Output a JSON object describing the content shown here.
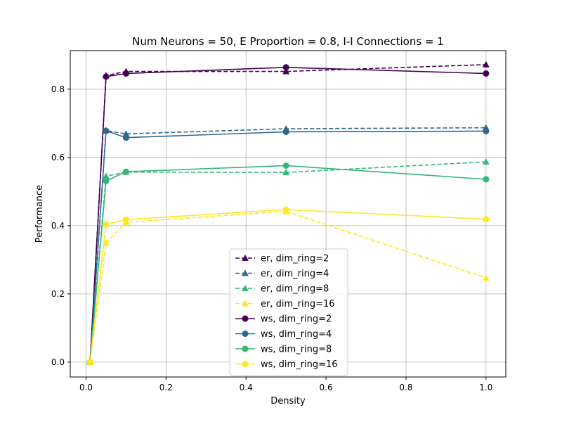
{
  "chart_data": {
    "type": "line",
    "title": "Num Neurons = 50, E Proportion = 0.8, I-I Connections = 1",
    "xlabel": "Density",
    "ylabel": "Performance",
    "xlim": [
      -0.0395,
      1.0495
    ],
    "ylim": [
      -0.0435,
      0.913
    ],
    "xticks": [
      0.0,
      0.2,
      0.4,
      0.6,
      0.8,
      1.0
    ],
    "xtick_labels": [
      "0.0",
      "0.2",
      "0.4",
      "0.6",
      "0.8",
      "1.0"
    ],
    "yticks": [
      0.0,
      0.2,
      0.4,
      0.6,
      0.8
    ],
    "ytick_labels": [
      "0.0",
      "0.2",
      "0.4",
      "0.6",
      "0.8"
    ],
    "grid": true,
    "legend_position": "bottom-center",
    "x": [
      0.01,
      0.05,
      0.1,
      0.5,
      1.0
    ],
    "series": [
      {
        "name": "er, dim_ring=2",
        "color": "#440154",
        "linestyle": "dashed",
        "marker": "triangle",
        "values": [
          0.0,
          0.84,
          0.852,
          0.852,
          0.872
        ]
      },
      {
        "name": "er, dim_ring=4",
        "color": "#31688e",
        "linestyle": "dashed",
        "marker": "triangle",
        "values": [
          0.0,
          0.679,
          0.669,
          0.684,
          0.687
        ]
      },
      {
        "name": "er, dim_ring=8",
        "color": "#35b779",
        "linestyle": "dashed",
        "marker": "triangle",
        "values": [
          0.0,
          0.545,
          0.557,
          0.556,
          0.587
        ]
      },
      {
        "name": "er, dim_ring=16",
        "color": "#fde725",
        "linestyle": "dashed",
        "marker": "triangle",
        "values": [
          0.0,
          0.349,
          0.41,
          0.442,
          0.247
        ]
      },
      {
        "name": "ws, dim_ring=2",
        "color": "#440154",
        "linestyle": "solid",
        "marker": "circle",
        "values": [
          0.0,
          0.837,
          0.846,
          0.864,
          0.846
        ]
      },
      {
        "name": "ws, dim_ring=4",
        "color": "#31688e",
        "linestyle": "solid",
        "marker": "circle",
        "values": [
          0.0,
          0.678,
          0.658,
          0.675,
          0.677
        ]
      },
      {
        "name": "ws, dim_ring=8",
        "color": "#35b779",
        "linestyle": "solid",
        "marker": "circle",
        "values": [
          0.0,
          0.531,
          0.558,
          0.576,
          0.536
        ]
      },
      {
        "name": "ws, dim_ring=16",
        "color": "#fde725",
        "linestyle": "solid",
        "marker": "circle",
        "values": [
          0.0,
          0.404,
          0.418,
          0.447,
          0.419
        ]
      }
    ]
  }
}
